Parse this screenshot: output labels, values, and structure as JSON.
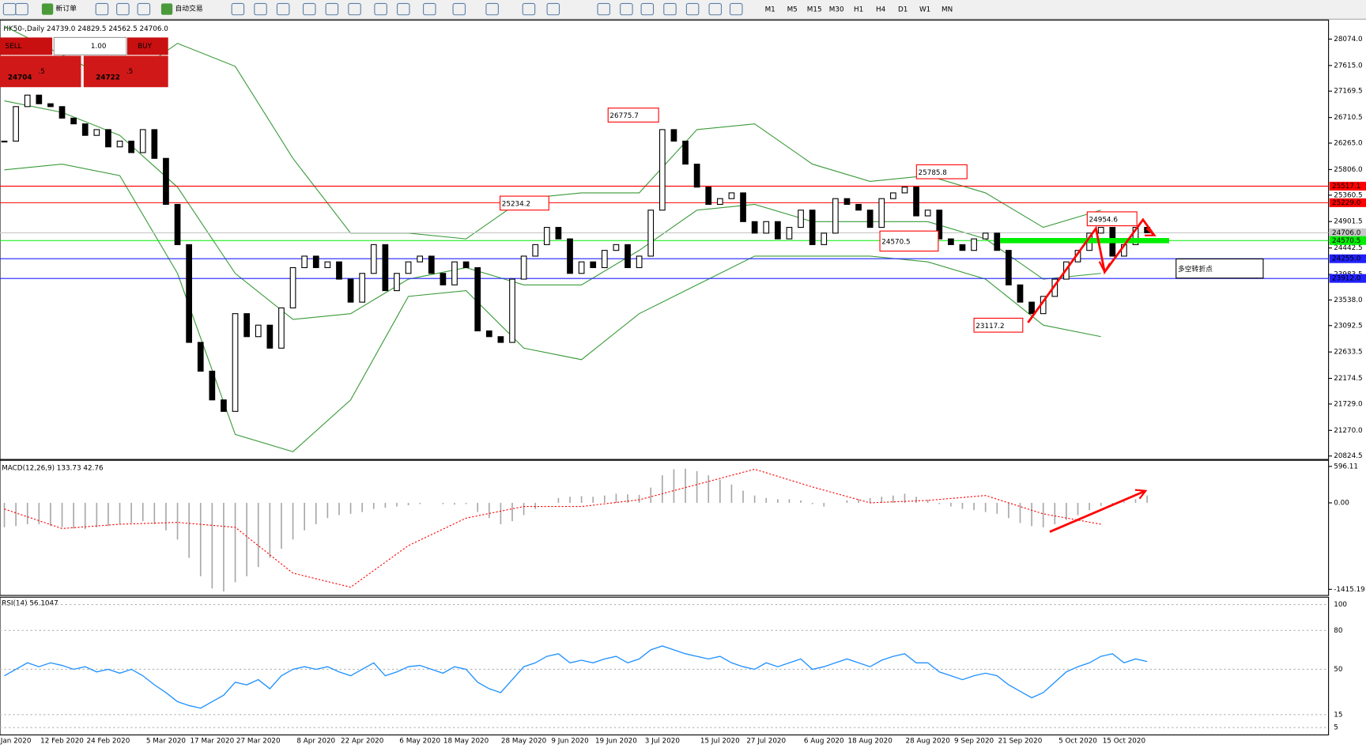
{
  "toolbar": {
    "buttons": [
      "新订单",
      "自动交易"
    ],
    "timeframes": [
      "M1",
      "M5",
      "M15",
      "M30",
      "H1",
      "H4",
      "D1",
      "W1",
      "MN"
    ]
  },
  "symbol_info": "HK50-,Daily  24739.0 24829.5 24562.5 24706.0",
  "trade_panel": {
    "sell": "SELL",
    "lot": "1.00",
    "buy": "BUY",
    "bid_main": "24704",
    "bid_pip": ".5",
    "ask_main": "24722",
    "ask_pip": ".5"
  },
  "price_chart": {
    "ylim": [
      20780,
      28390
    ],
    "yticks": [
      {
        "value": 28074,
        "label": "28074.0"
      },
      {
        "value": 27615,
        "label": "27615.0"
      },
      27169.5,
      26710.5,
      {
        "value": 26265,
        "label": "26265.0"
      },
      {
        "value": 25806,
        "label": "25806.0"
      },
      25360.5,
      24901.5,
      24442.5,
      23983.5,
      {
        "value": 23538,
        "label": "23538.0"
      },
      23092.5,
      22633.5,
      22174.5,
      {
        "value": 21729,
        "label": "21729.0"
      },
      {
        "value": 21270,
        "label": "21270.0"
      },
      20824.5
    ],
    "categories": [
      null,
      "Jan 2020",
      null,
      null,
      null,
      "12 Feb 2020",
      null,
      null,
      null,
      "24 Feb 2020",
      null,
      null,
      null,
      null,
      "5 Mar 2020",
      null,
      null,
      null,
      "17 Mar 2020",
      null,
      null,
      null,
      "27 Mar 2020",
      null,
      null,
      null,
      null,
      "8 Apr 2020",
      null,
      null,
      null,
      "22 Apr 2020",
      null,
      null,
      null,
      null,
      "6 May 2020",
      null,
      null,
      null,
      "18 May 2020",
      null,
      null,
      null,
      null,
      "28 May 2020",
      null,
      null,
      null,
      "9 Jun 2020",
      null,
      null,
      null,
      "19 Jun 2020",
      null,
      null,
      null,
      "3 Jul 2020",
      null,
      null,
      null,
      null,
      "15 Jul 2020",
      null,
      null,
      null,
      "27 Jul 2020",
      null,
      null,
      null,
      null,
      "6 Aug 2020",
      null,
      null,
      null,
      "18 Aug 2020",
      null,
      null,
      null,
      null,
      "28 Aug 2020",
      null,
      null,
      null,
      "9 Sep 2020",
      null,
      null,
      null,
      "21 Sep 2020",
      null,
      null,
      null,
      null,
      "5 Oct 2020",
      null,
      null,
      null,
      "15 Oct 2020",
      null,
      null
    ],
    "closes": [
      26300,
      26900,
      27100,
      26950,
      26900,
      26700,
      26600,
      26400,
      26500,
      26200,
      26300,
      26100,
      26500,
      26000,
      25200,
      24500,
      22800,
      22300,
      21800,
      21600,
      23300,
      22900,
      23100,
      22700,
      23400,
      24100,
      24300,
      24100,
      24200,
      23900,
      23500,
      24000,
      24500,
      23700,
      24000,
      24200,
      24300,
      24000,
      23800,
      24200,
      24100,
      23000,
      22900,
      22800,
      23900,
      24300,
      24500,
      24800,
      24600,
      24000,
      24200,
      24100,
      24400,
      24500,
      24100,
      24300,
      25100,
      26500,
      26300,
      25900,
      25500,
      25200,
      25300,
      25400,
      24900,
      24700,
      24900,
      24600,
      24800,
      25100,
      24500,
      24700,
      25300,
      25200,
      25100,
      24800,
      25300,
      25400,
      25500,
      25000,
      25100,
      24600,
      24500,
      24400,
      24600,
      24700,
      24400,
      23800,
      23500,
      23300,
      23600,
      23900,
      24200,
      24400,
      24700,
      24800,
      24300,
      24500,
      24800,
      24706
    ],
    "bands": {
      "upper": [
        28300,
        27800,
        27300,
        28000,
        27600,
        26000,
        24700,
        24700,
        24600,
        25300,
        25400,
        25400,
        26500,
        26600,
        25900,
        25600,
        25700,
        25400,
        24800,
        25100
      ],
      "middle": [
        27000,
        26800,
        26400,
        25500,
        24000,
        23200,
        23300,
        23900,
        24100,
        23800,
        23800,
        24400,
        25100,
        25200,
        24900,
        24900,
        24900,
        24600,
        23900,
        24000
      ],
      "lower": [
        25800,
        25900,
        25700,
        24000,
        21200,
        20900,
        21800,
        23600,
        23700,
        22700,
        22500,
        23300,
        23800,
        24300,
        24300,
        24300,
        24200,
        23900,
        23100,
        22900
      ]
    },
    "levels": [
      {
        "value": 25517.1,
        "color": "#ff0000"
      },
      {
        "value": 25229,
        "label": "25229.0",
        "color": "#ff0000"
      },
      {
        "value": 24706,
        "label": "24706.0",
        "color": "#c8c8c8"
      },
      {
        "value": 24570.5,
        "color": "#00ee00"
      },
      {
        "value": 24255,
        "label": "24255.0",
        "color": "#2020ff"
      },
      {
        "value": 23912,
        "label": "23912.0",
        "color": "#2020ff"
      }
    ],
    "annotations": [
      "26775.7",
      "25234.2",
      "25785.8",
      "24570.5",
      "24954.6",
      "23117.2",
      "多空转折点"
    ]
  },
  "macd": {
    "label": "MACD(12,26,9) 133.73 42.76",
    "ylim": [
      -1515,
      696
    ],
    "yticks": [
      596.11,
      {
        "value": 0,
        "label": "0.00"
      },
      -1415.19
    ],
    "histogram": [
      -400,
      -380,
      -350,
      -350,
      -380,
      -400,
      -420,
      -430,
      -400,
      -380,
      -350,
      -330,
      -300,
      -350,
      -450,
      -600,
      -900,
      -1200,
      -1400,
      -1450,
      -1300,
      -1200,
      -1050,
      -900,
      -750,
      -600,
      -450,
      -350,
      -250,
      -200,
      -180,
      -150,
      -100,
      -80,
      -60,
      -40,
      -20,
      0,
      -20,
      -30,
      -20,
      -150,
      -250,
      -350,
      -300,
      -200,
      -100,
      0,
      80,
      100,
      110,
      100,
      120,
      150,
      140,
      130,
      250,
      450,
      550,
      560,
      520,
      450,
      380,
      300,
      200,
      120,
      80,
      60,
      60,
      40,
      -20,
      -60,
      0,
      40,
      60,
      80,
      100,
      120,
      150,
      100,
      50,
      -20,
      -60,
      -100,
      -120,
      -150,
      -180,
      -250,
      -330,
      -380,
      -400,
      -350,
      -280,
      -200,
      -120,
      -50,
      -40,
      20,
      60,
      120
    ],
    "signal": [
      -100,
      -420,
      -350,
      -320,
      -400,
      -1150,
      -1380,
      -700,
      -250,
      -60,
      -60,
      50,
      300,
      550,
      260,
      0,
      40,
      120,
      -180,
      -350
    ]
  },
  "rsi": {
    "label": "RSI(14) 56.1047",
    "ylim": [
      0,
      103
    ],
    "yticks": [
      100,
      80,
      50,
      15,
      5
    ],
    "values": [
      45,
      50,
      55,
      52,
      55,
      53,
      50,
      52,
      48,
      50,
      47,
      50,
      45,
      38,
      32,
      25,
      22,
      20,
      25,
      30,
      40,
      38,
      42,
      35,
      45,
      50,
      52,
      50,
      52,
      48,
      45,
      50,
      55,
      45,
      48,
      52,
      53,
      50,
      47,
      52,
      50,
      40,
      35,
      32,
      42,
      52,
      55,
      60,
      62,
      55,
      57,
      55,
      58,
      60,
      55,
      58,
      65,
      68,
      65,
      62,
      60,
      58,
      60,
      55,
      52,
      50,
      55,
      52,
      55,
      58,
      50,
      52,
      55,
      58,
      55,
      52,
      57,
      60,
      62,
      55,
      55,
      48,
      45,
      42,
      45,
      47,
      45,
      38,
      33,
      28,
      32,
      40,
      48,
      52,
      55,
      60,
      62,
      55,
      58,
      56
    ]
  }
}
